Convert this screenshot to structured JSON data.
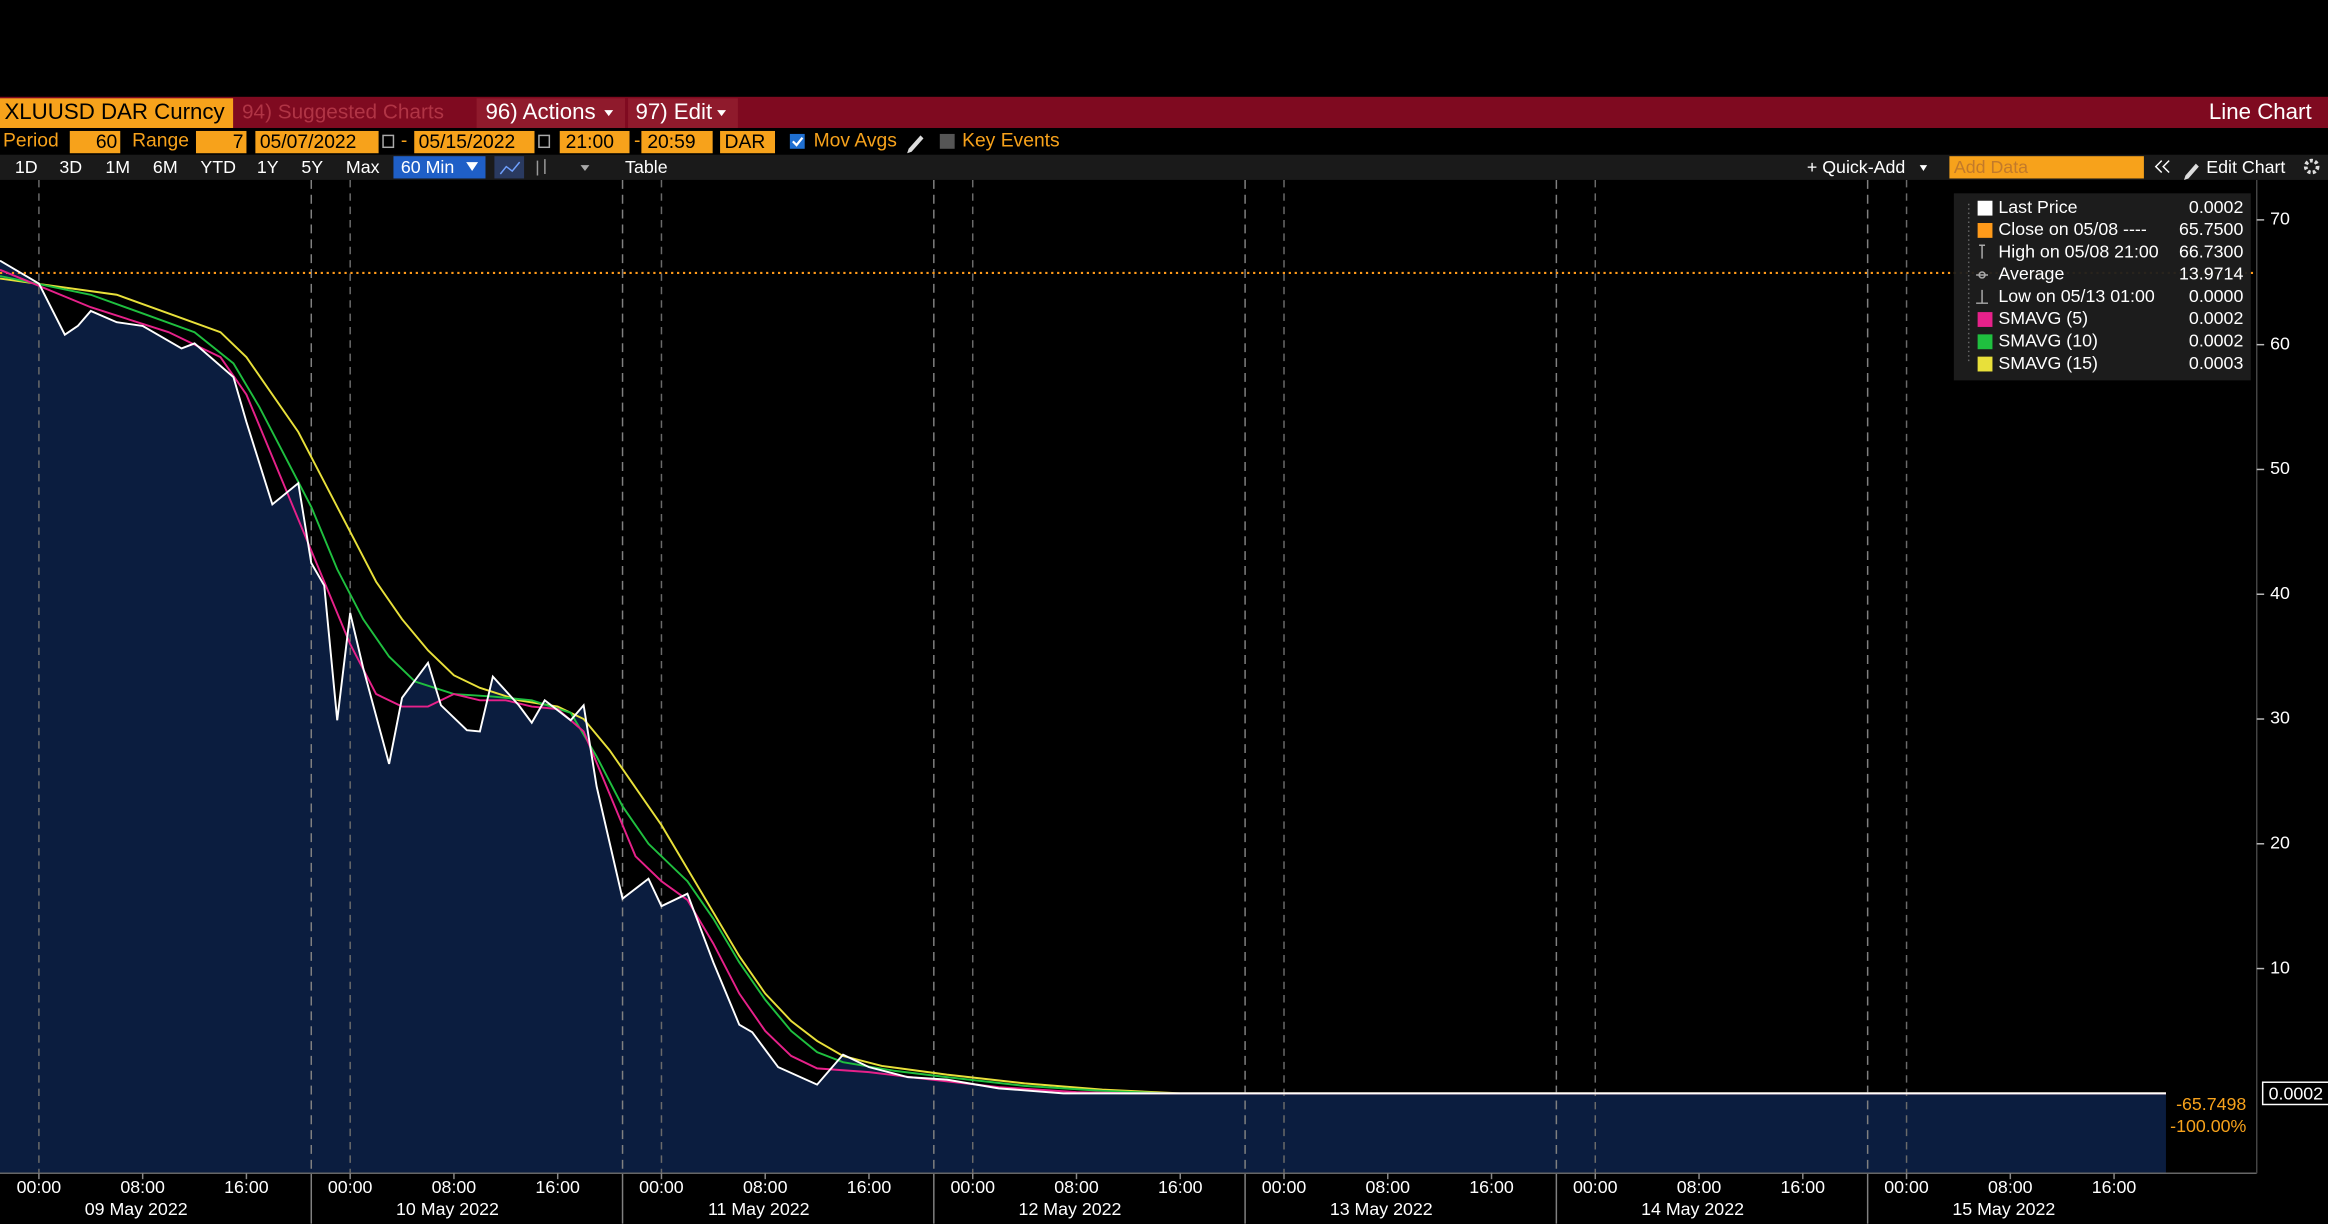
{
  "header": {
    "security": "XLUUSD DAR Curncy",
    "suggested": "94) Suggested Charts",
    "actions": "96) Actions",
    "edit": "97) Edit",
    "view": "Line Chart"
  },
  "settings": {
    "period_label": "Period",
    "period": "60",
    "range_label": "Range",
    "range": "7",
    "start_date": "05/07/2022",
    "separator": "-",
    "end_date": "05/15/2022",
    "start_time": "21:00",
    "end_time": "20:59",
    "calendar": "DAR",
    "mov_avgs": "Mov Avgs",
    "key_events": "Key Events"
  },
  "toolbar": {
    "periods": [
      "1D",
      "3D",
      "1M",
      "6M",
      "YTD",
      "1Y",
      "5Y",
      "Max"
    ],
    "interval": "60 Min",
    "table": "Table",
    "quick_add": "+ Quick-Add",
    "add_data": "Add Data",
    "edit_chart": "Edit Chart"
  },
  "chart_data": {
    "type": "line",
    "xlim": [
      "2022-05-08 21:00",
      "2022-05-16 03:00"
    ],
    "ylim": [
      -6.4,
      73.2
    ],
    "yticks": [
      10,
      20,
      30,
      40,
      50,
      60,
      70
    ],
    "xticks": [
      {
        "value": "2022-05-09 00:00",
        "label": "00:00"
      },
      {
        "value": "2022-05-09 08:00",
        "label": "08:00"
      },
      {
        "value": "2022-05-09 16:00",
        "label": "16:00"
      },
      {
        "value": "2022-05-10 00:00",
        "label": "00:00"
      },
      {
        "value": "2022-05-10 08:00",
        "label": "08:00"
      },
      {
        "value": "2022-05-10 16:00",
        "label": "16:00"
      },
      {
        "value": "2022-05-11 00:00",
        "label": "00:00"
      },
      {
        "value": "2022-05-11 08:00",
        "label": "08:00"
      },
      {
        "value": "2022-05-11 16:00",
        "label": "16:00"
      },
      {
        "value": "2022-05-12 00:00",
        "label": "00:00"
      },
      {
        "value": "2022-05-12 08:00",
        "label": "08:00"
      },
      {
        "value": "2022-05-12 16:00",
        "label": "16:00"
      },
      {
        "value": "2022-05-13 00:00",
        "label": "00:00"
      },
      {
        "value": "2022-05-13 08:00",
        "label": "08:00"
      },
      {
        "value": "2022-05-13 16:00",
        "label": "16:00"
      },
      {
        "value": "2022-05-14 00:00",
        "label": "00:00"
      },
      {
        "value": "2022-05-14 08:00",
        "label": "08:00"
      },
      {
        "value": "2022-05-14 16:00",
        "label": "16:00"
      },
      {
        "value": "2022-05-15 00:00",
        "label": "00:00"
      },
      {
        "value": "2022-05-15 08:00",
        "label": "08:00"
      },
      {
        "value": "2022-05-15 16:00",
        "label": "16:00"
      }
    ],
    "xdays": [
      {
        "value": "2022-05-09 00:00",
        "label": "09 May 2022"
      },
      {
        "value": "2022-05-10 00:00",
        "label": "10 May 2022"
      },
      {
        "value": "2022-05-11 00:00",
        "label": "11 May 2022"
      },
      {
        "value": "2022-05-12 00:00",
        "label": "12 May 2022"
      },
      {
        "value": "2022-05-13 00:00",
        "label": "13 May 2022"
      },
      {
        "value": "2022-05-14 00:00",
        "label": "14 May 2022"
      },
      {
        "value": "2022-05-15 00:00",
        "label": "15 May 2022"
      }
    ],
    "session_breaks": [
      "2022-05-09 21:00",
      "2022-05-10 21:00",
      "2022-05-11 21:00",
      "2022-05-12 21:00",
      "2022-05-13 21:00",
      "2022-05-14 21:00"
    ],
    "area_color": "#0b1d3f",
    "series": [
      {
        "name": "Last Price",
        "color": "#ffffff",
        "legend_value": "0.0002",
        "x": [
          "2022-05-08 21:00",
          "2022-05-09 00:00",
          "2022-05-09 02:00",
          "2022-05-09 03:00",
          "2022-05-09 04:00",
          "2022-05-09 06:00",
          "2022-05-09 08:00",
          "2022-05-09 11:00",
          "2022-05-09 12:00",
          "2022-05-09 15:00",
          "2022-05-09 16:00",
          "2022-05-09 18:00",
          "2022-05-09 20:00",
          "2022-05-09 21:00",
          "2022-05-09 22:00",
          "2022-05-09 23:00",
          "2022-05-10 00:00",
          "2022-05-10 01:00",
          "2022-05-10 03:00",
          "2022-05-10 04:00",
          "2022-05-10 06:00",
          "2022-05-10 07:00",
          "2022-05-10 09:00",
          "2022-05-10 10:00",
          "2022-05-10 11:00",
          "2022-05-10 13:00",
          "2022-05-10 14:00",
          "2022-05-10 15:00",
          "2022-05-10 17:00",
          "2022-05-10 18:00",
          "2022-05-10 19:00",
          "2022-05-10 21:00",
          "2022-05-10 23:00",
          "2022-05-11 00:00",
          "2022-05-11 02:00",
          "2022-05-11 04:00",
          "2022-05-11 06:00",
          "2022-05-11 07:00",
          "2022-05-11 09:00",
          "2022-05-11 12:00",
          "2022-05-11 14:00",
          "2022-05-11 16:00",
          "2022-05-11 19:00",
          "2022-05-11 22:00",
          "2022-05-12 02:00",
          "2022-05-12 07:00",
          "2022-05-15 20:00"
        ],
        "values": [
          66.73,
          64.9,
          60.8,
          61.5,
          62.7,
          61.8,
          61.5,
          59.7,
          60.1,
          57.4,
          53.8,
          47.2,
          48.9,
          42.5,
          40.7,
          29.9,
          38.5,
          34.1,
          26.4,
          31.7,
          34.5,
          31.1,
          29.1,
          29.0,
          33.4,
          31.1,
          29.7,
          31.5,
          29.9,
          31.1,
          24.6,
          15.6,
          17.2,
          15.0,
          16.0,
          10.5,
          5.5,
          4.9,
          2.1,
          0.7,
          3.1,
          2.1,
          1.3,
          1.1,
          0.4,
          0,
          0.0002
        ]
      },
      {
        "name": "SMAVG (5)",
        "color": "#e6218a",
        "legend_value": "0.0002",
        "x": [
          "2022-05-08 21:00",
          "2022-05-09 04:00",
          "2022-05-09 10:00",
          "2022-05-09 14:00",
          "2022-05-09 16:00",
          "2022-05-09 18:00",
          "2022-05-09 20:00",
          "2022-05-09 22:00",
          "2022-05-10 00:00",
          "2022-05-10 02:00",
          "2022-05-10 04:00",
          "2022-05-10 06:00",
          "2022-05-10 08:00",
          "2022-05-10 10:00",
          "2022-05-10 12:00",
          "2022-05-10 14:00",
          "2022-05-10 16:00",
          "2022-05-10 18:00",
          "2022-05-10 20:00",
          "2022-05-10 22:00",
          "2022-05-11 00:00",
          "2022-05-11 02:00",
          "2022-05-11 04:00",
          "2022-05-11 06:00",
          "2022-05-11 08:00",
          "2022-05-11 10:00",
          "2022-05-11 12:00",
          "2022-05-11 16:00",
          "2022-05-11 20:00",
          "2022-05-12 02:00",
          "2022-05-12 08:00",
          "2022-05-12 12:00",
          "2022-05-15 20:00"
        ],
        "values": [
          66,
          63,
          61,
          59,
          56,
          51,
          46,
          41,
          36,
          32,
          31,
          31,
          32,
          31.5,
          31.5,
          31,
          30.8,
          29,
          24,
          19,
          17,
          15.5,
          12,
          8,
          5,
          3,
          2,
          1.7,
          1.2,
          0.5,
          0.1,
          0,
          0.0002
        ]
      },
      {
        "name": "SMAVG (10)",
        "color": "#1fbf3f",
        "legend_value": "0.0002",
        "x": [
          "2022-05-08 21:00",
          "2022-05-09 04:00",
          "2022-05-09 08:00",
          "2022-05-09 12:00",
          "2022-05-09 15:00",
          "2022-05-09 17:00",
          "2022-05-09 19:00",
          "2022-05-09 21:00",
          "2022-05-09 23:00",
          "2022-05-10 01:00",
          "2022-05-10 03:00",
          "2022-05-10 05:00",
          "2022-05-10 08:00",
          "2022-05-10 11:00",
          "2022-05-10 14:00",
          "2022-05-10 17:00",
          "2022-05-10 19:00",
          "2022-05-10 21:00",
          "2022-05-10 23:00",
          "2022-05-11 02:00",
          "2022-05-11 04:00",
          "2022-05-11 06:00",
          "2022-05-11 08:00",
          "2022-05-11 10:00",
          "2022-05-11 12:00",
          "2022-05-11 14:00",
          "2022-05-11 18:00",
          "2022-05-11 22:00",
          "2022-05-12 04:00",
          "2022-05-12 10:00",
          "2022-05-12 15:00",
          "2022-05-15 20:00"
        ],
        "values": [
          65.5,
          64,
          62.5,
          61,
          58.5,
          55,
          51,
          47,
          42,
          38,
          35,
          33,
          32,
          31.8,
          31.5,
          30.5,
          27,
          23,
          20,
          17,
          14,
          10.5,
          7.5,
          5,
          3.3,
          2.5,
          1.8,
          1.3,
          0.6,
          0.2,
          0,
          0.0002
        ]
      },
      {
        "name": "SMAVG (15)",
        "color": "#e8e03a",
        "legend_value": "0.0003",
        "x": [
          "2022-05-08 21:00",
          "2022-05-09 06:00",
          "2022-05-09 10:00",
          "2022-05-09 14:00",
          "2022-05-09 16:00",
          "2022-05-09 18:00",
          "2022-05-09 20:00",
          "2022-05-09 22:00",
          "2022-05-10 00:00",
          "2022-05-10 02:00",
          "2022-05-10 04:00",
          "2022-05-10 06:00",
          "2022-05-10 08:00",
          "2022-05-10 10:00",
          "2022-05-10 13:00",
          "2022-05-10 16:00",
          "2022-05-10 18:00",
          "2022-05-10 20:00",
          "2022-05-10 22:00",
          "2022-05-11 00:00",
          "2022-05-11 02:00",
          "2022-05-11 04:00",
          "2022-05-11 06:00",
          "2022-05-11 08:00",
          "2022-05-11 10:00",
          "2022-05-11 12:00",
          "2022-05-11 14:00",
          "2022-05-11 17:00",
          "2022-05-11 22:00",
          "2022-05-12 04:00",
          "2022-05-12 10:00",
          "2022-05-12 16:00",
          "2022-05-15 20:00"
        ],
        "values": [
          65.3,
          64,
          62.5,
          61,
          59,
          56,
          53,
          49,
          45,
          41,
          38,
          35.5,
          33.5,
          32.5,
          31.5,
          31,
          30,
          27.5,
          24.5,
          21.5,
          18,
          14.5,
          11,
          8,
          5.8,
          4.2,
          3,
          2.2,
          1.5,
          0.8,
          0.3,
          0,
          0.0003
        ]
      }
    ],
    "close_line": {
      "label": "Close on 05/08 ----",
      "value": 65.75,
      "value_label": "65.7500",
      "color": "#ff9a1a"
    },
    "stats": [
      {
        "label": "High on 05/08 21:00",
        "value": 66.73,
        "value_label": "66.7300"
      },
      {
        "label": "Average",
        "value": 13.9714,
        "value_label": "13.9714"
      },
      {
        "label": "Low on 05/13 01:00",
        "value": 0,
        "value_label": "0.0000"
      }
    ],
    "last_label": "0.0002",
    "net_change": "-65.7498",
    "pct_change": "-100.00%"
  }
}
